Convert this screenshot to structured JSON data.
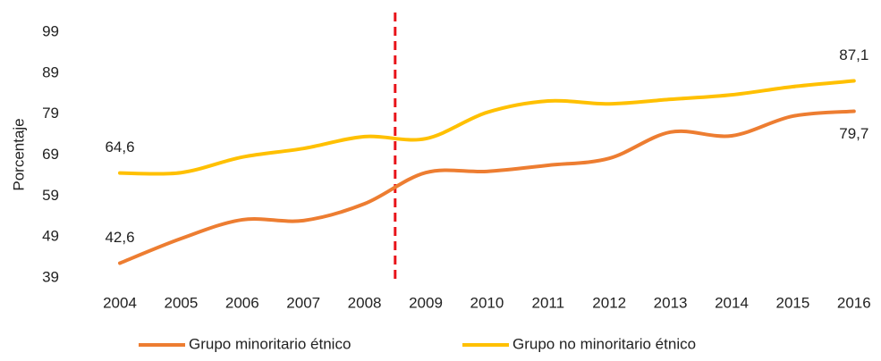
{
  "chart_data": {
    "type": "line",
    "y_label": "Porcentaje",
    "categories": [
      "2004",
      "2005",
      "2006",
      "2007",
      "2008",
      "2009",
      "2010",
      "2011",
      "2012",
      "2013",
      "2014",
      "2015",
      "2016"
    ],
    "series": [
      {
        "name": "Grupo minoritario étnico",
        "color": "#ed7d31",
        "values": [
          42.6,
          48.6,
          53.2,
          53.0,
          57.1,
          64.7,
          65.0,
          66.5,
          68.2,
          74.6,
          73.7,
          78.5,
          79.7
        ],
        "value_labels": [
          "42,6",
          null,
          null,
          null,
          null,
          null,
          null,
          null,
          null,
          null,
          null,
          null,
          "79,7"
        ]
      },
      {
        "name": "Grupo no minoritario étnico",
        "color": "#ffc000",
        "values": [
          64.6,
          64.7,
          68.5,
          70.6,
          73.5,
          73.0,
          79.4,
          82.2,
          81.5,
          82.6,
          83.7,
          85.7,
          87.1
        ],
        "value_labels": [
          "64,6",
          null,
          null,
          null,
          null,
          null,
          null,
          null,
          null,
          null,
          null,
          null,
          "87,1"
        ]
      }
    ],
    "ylim": [
      39,
      99
    ],
    "yticks": [
      39,
      49,
      59,
      69,
      79,
      89,
      99
    ],
    "grid": false,
    "legend": "bottom",
    "reference_line": {
      "position": 4.5,
      "color": "#e8141a",
      "style": "dashed"
    }
  }
}
